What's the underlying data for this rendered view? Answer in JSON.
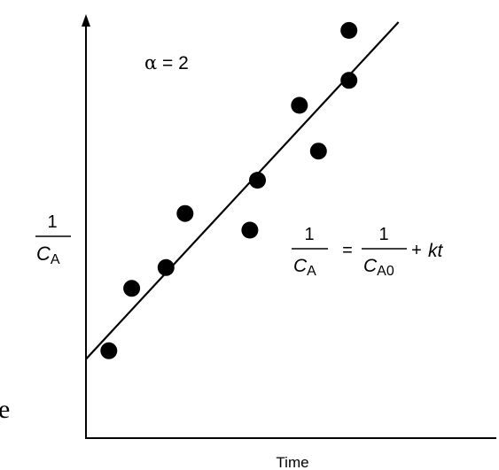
{
  "chart_data": {
    "type": "scatter",
    "xlabel": "Time",
    "ylabel": {
      "numerator": "1",
      "symbol": "C",
      "subscript": "A"
    },
    "annotation": {
      "lhs": "α",
      "eq": "=",
      "rhs": "2"
    },
    "equation": {
      "lhs_num": "1",
      "lhs_sym": "C",
      "lhs_sub": "A",
      "eq": "=",
      "rhs_num": "1",
      "rhs_sym": "C",
      "rhs_sub": "A0",
      "plus": "+",
      "term": "kt"
    },
    "fragment_text": "e",
    "xlim": [
      0,
      10
    ],
    "ylim": [
      0,
      10
    ],
    "points": [
      {
        "x": 0.6,
        "y": 2.1
      },
      {
        "x": 1.2,
        "y": 3.6
      },
      {
        "x": 2.1,
        "y": 4.1
      },
      {
        "x": 2.6,
        "y": 5.4
      },
      {
        "x": 4.3,
        "y": 5.0
      },
      {
        "x": 4.5,
        "y": 6.2
      },
      {
        "x": 5.6,
        "y": 8.0
      },
      {
        "x": 6.1,
        "y": 6.9
      },
      {
        "x": 6.9,
        "y": 8.6
      },
      {
        "x": 6.9,
        "y": 9.8
      }
    ],
    "fit_line": {
      "x": [
        0,
        8.2
      ],
      "y": [
        1.9,
        10.0
      ]
    },
    "grid": false
  }
}
